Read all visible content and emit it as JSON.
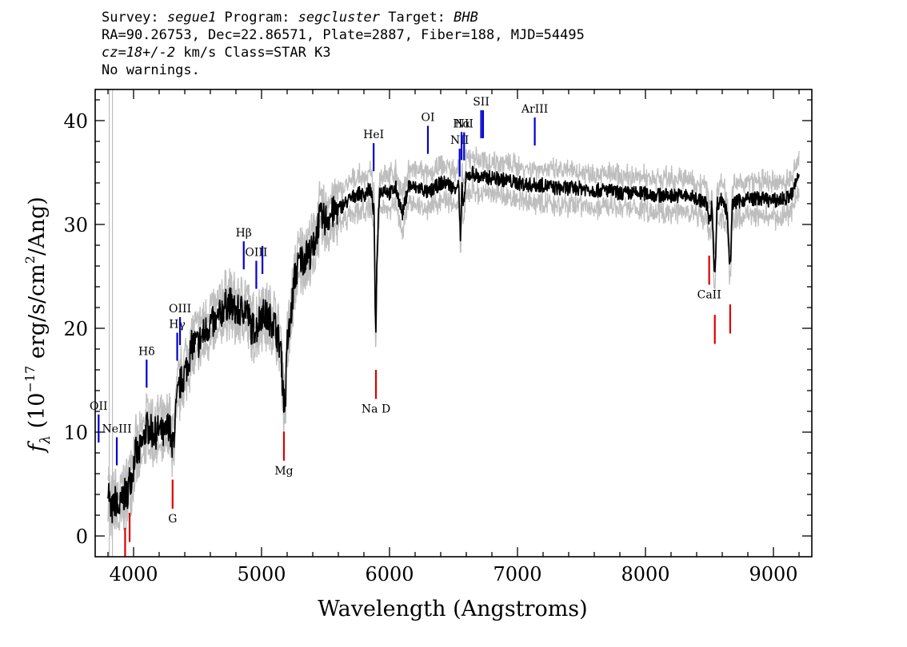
{
  "header": {
    "line1": {
      "survey_label": "Survey: ",
      "survey": "segue1",
      "program_label": " Program: ",
      "program": "segcluster",
      "target_label": " Target: ",
      "target": "BHB"
    },
    "line2": "RA=90.26753, Dec=22.86571, Plate=2887, Fiber=188, MJD=54495",
    "line3": {
      "cz": "cz=18+/-2",
      "rest": " km/s Class=STAR K3"
    },
    "line4": "No warnings."
  },
  "chart_data": {
    "type": "line",
    "title": "",
    "xlabel": "Wavelength (Angstroms)",
    "ylabel": "f_λ (10^-17 erg/s/cm^2/Ang)",
    "xlim": [
      3700,
      9300
    ],
    "ylim": [
      -2,
      43
    ],
    "xticks": [
      4000,
      5000,
      6000,
      7000,
      8000,
      9000
    ],
    "yticks": [
      0,
      10,
      20,
      30,
      40
    ],
    "colors": {
      "flux": "#000000",
      "error": "#bebebe",
      "emission": "#0000cc",
      "absorption": "#dd0000",
      "fiducial": "#bebebe"
    },
    "fiducial_x": [
      3810,
      3835
    ],
    "series": [
      {
        "role": "flux",
        "x": [
          3800,
          3820,
          3840,
          3860,
          3880,
          3900,
          3920,
          3935,
          3950,
          3970,
          3990,
          4010,
          4040,
          4080,
          4100,
          4130,
          4160,
          4200,
          4240,
          4280,
          4300,
          4320,
          4340,
          4360,
          4380,
          4420,
          4460,
          4500,
          4550,
          4600,
          4650,
          4700,
          4750,
          4800,
          4850,
          4880,
          4920,
          4960,
          5000,
          5050,
          5100,
          5150,
          5170,
          5180,
          5190,
          5200,
          5220,
          5260,
          5300,
          5350,
          5400,
          5450,
          5500,
          5550,
          5600,
          5650,
          5700,
          5750,
          5800,
          5850,
          5880,
          5890,
          5895,
          5900,
          5920,
          5960,
          6000,
          6050,
          6100,
          6150,
          6200,
          6250,
          6300,
          6350,
          6400,
          6450,
          6500,
          6540,
          6555,
          6565,
          6580,
          6600,
          6650,
          6700,
          6750,
          6800,
          6900,
          7000,
          7100,
          7200,
          7300,
          7400,
          7500,
          7600,
          7700,
          7800,
          7900,
          8000,
          8100,
          8200,
          8300,
          8400,
          8480,
          8500,
          8520,
          8542,
          8560,
          8600,
          8640,
          8662,
          8680,
          8720,
          8800,
          8900,
          9000,
          9100,
          9150,
          9200
        ],
        "values": [
          5.2,
          2.3,
          2.6,
          3.5,
          2.4,
          3.0,
          3.8,
          4.0,
          4.0,
          5.5,
          5.8,
          8.0,
          7.8,
          9.3,
          10.5,
          10.2,
          9.8,
          10.2,
          9.5,
          11.0,
          8.0,
          10.5,
          13.0,
          14.5,
          15.0,
          16.5,
          18.5,
          18.5,
          19.5,
          20.5,
          20.5,
          22.0,
          22.5,
          21.5,
          21.8,
          22.0,
          20.0,
          20.0,
          21.5,
          21.0,
          20.5,
          18.0,
          14.0,
          12.5,
          14.0,
          18.5,
          20.0,
          25.0,
          26.5,
          27.0,
          27.5,
          30.5,
          30.5,
          31.0,
          31.5,
          32.0,
          32.5,
          33.0,
          32.8,
          33.5,
          31.0,
          20.0,
          19.0,
          26.0,
          33.0,
          33.5,
          33.0,
          33.5,
          31.0,
          33.8,
          33.5,
          33.5,
          33.0,
          33.5,
          34.0,
          34.0,
          33.5,
          34.0,
          28.0,
          33.5,
          32.0,
          34.5,
          35.0,
          34.5,
          34.5,
          34.5,
          34.3,
          34.0,
          33.8,
          33.8,
          33.5,
          33.5,
          33.5,
          33.3,
          33.3,
          33.0,
          33.0,
          33.0,
          32.8,
          32.8,
          32.8,
          32.5,
          32.0,
          30.0,
          32.0,
          24.5,
          32.0,
          32.5,
          31.0,
          25.5,
          32.0,
          32.2,
          32.5,
          32.5,
          32.3,
          32.5,
          33.0,
          35.0
        ]
      }
    ],
    "line_labels": [
      {
        "label": "OII",
        "x": 3727,
        "kind": "emission"
      },
      {
        "label": "NeIII",
        "x": 3869,
        "kind": "emission"
      },
      {
        "label": "Hδ",
        "x": 4102,
        "kind": "emission"
      },
      {
        "label": "Hγ",
        "x": 4341,
        "kind": "emission"
      },
      {
        "label": "OIII",
        "x": 4363,
        "kind": "emission"
      },
      {
        "label": "Hβ",
        "x": 4861,
        "kind": "emission"
      },
      {
        "label": "OIII",
        "x": 4959,
        "kind": "emission"
      },
      {
        "label": "",
        "x": 5007,
        "kind": "emission"
      },
      {
        "label": "HeI",
        "x": 5876,
        "kind": "emission"
      },
      {
        "label": "OI",
        "x": 6300,
        "kind": "emission"
      },
      {
        "label": "NII",
        "x": 6548,
        "kind": "emission"
      },
      {
        "label": "Hα",
        "x": 6563,
        "kind": "emission"
      },
      {
        "label": "NII",
        "x": 6583,
        "kind": "emission"
      },
      {
        "label": "SII",
        "x": 6716,
        "kind": "emission"
      },
      {
        "label": "",
        "x": 6731,
        "kind": "emission"
      },
      {
        "label": "ArIII",
        "x": 7135,
        "kind": "emission"
      },
      {
        "label": "",
        "x": 3934,
        "kind": "absorption"
      },
      {
        "label": "",
        "x": 3969,
        "kind": "absorption"
      },
      {
        "label": "G",
        "x": 4305,
        "kind": "absorption"
      },
      {
        "label": "Mg",
        "x": 5175,
        "kind": "absorption"
      },
      {
        "label": "Na D",
        "x": 5894,
        "kind": "absorption"
      },
      {
        "label": "CaII",
        "x": 8498,
        "kind": "absorption"
      },
      {
        "label": "",
        "x": 8542,
        "kind": "absorption"
      },
      {
        "label": "",
        "x": 8662,
        "kind": "absorption"
      }
    ]
  }
}
